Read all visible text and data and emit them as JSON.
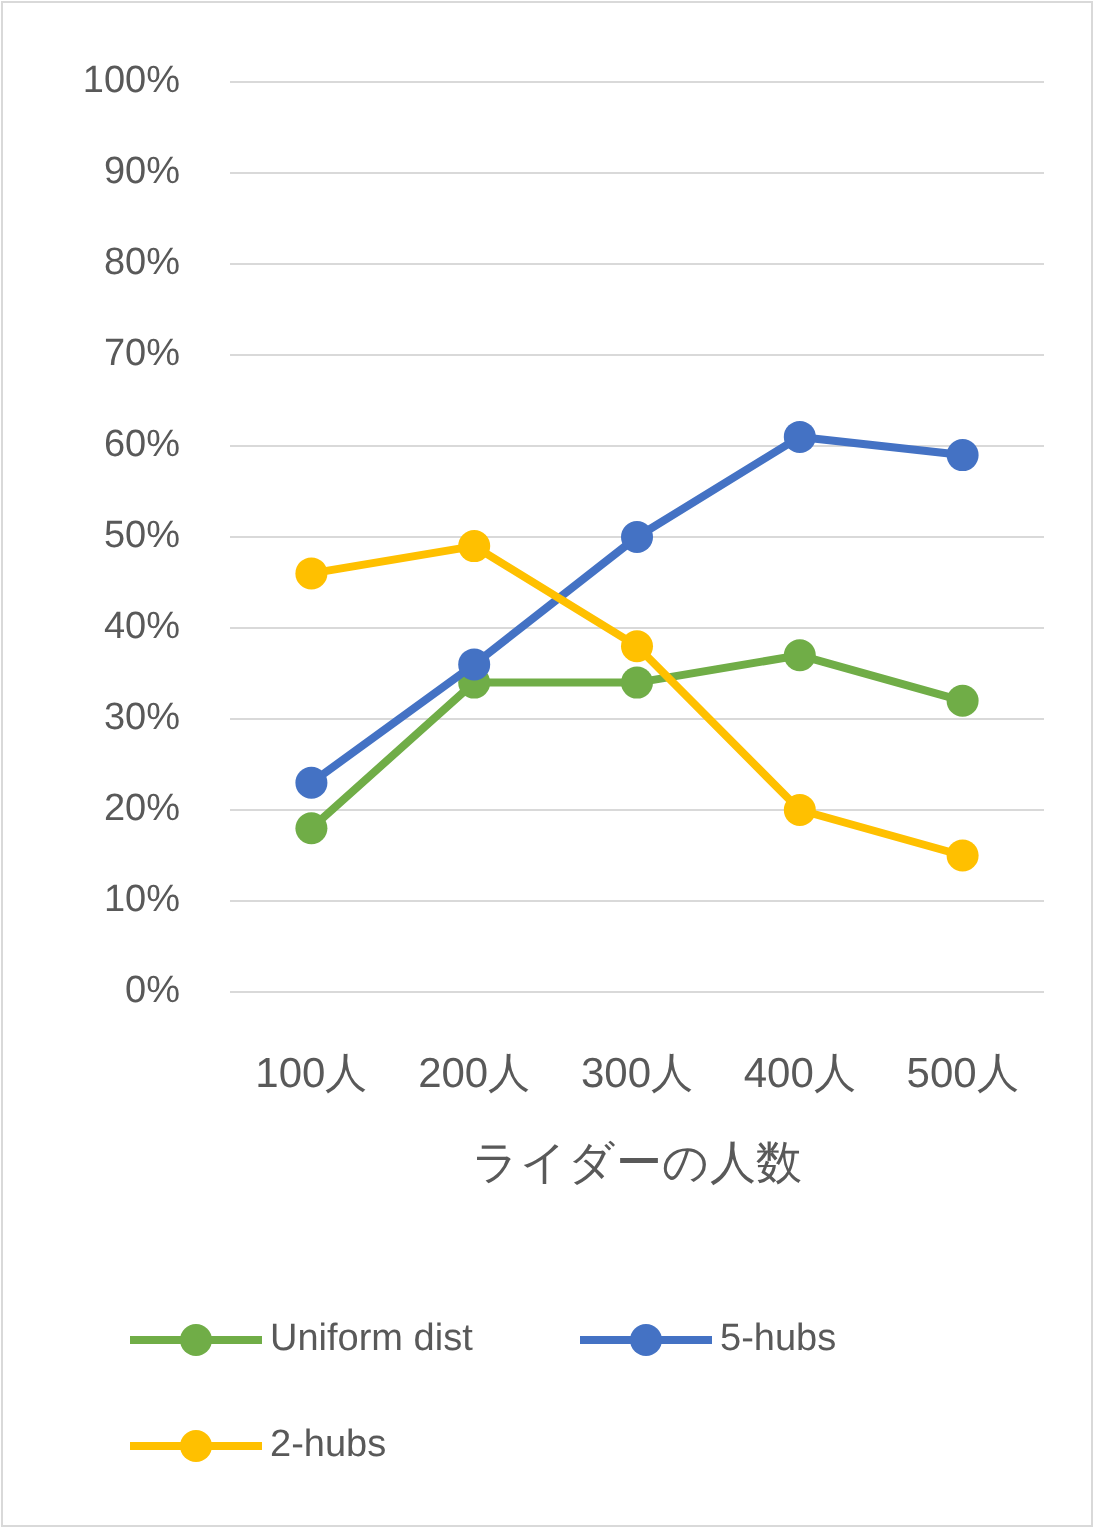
{
  "chart_data": {
    "type": "line",
    "xlabel": "ライダーの人数",
    "categories": [
      "100人",
      "200人",
      "300人",
      "400人",
      "500人"
    ],
    "series": [
      {
        "name": "Uniform dist",
        "color": "#70ad47",
        "values": [
          18,
          34,
          34,
          37,
          32
        ]
      },
      {
        "name": "5-hubs",
        "color": "#4472c4",
        "values": [
          23,
          36,
          50,
          61,
          59
        ]
      },
      {
        "name": "2-hubs",
        "color": "#ffc000",
        "values": [
          46,
          49,
          38,
          20,
          15
        ]
      }
    ],
    "ylim": [
      0,
      100
    ],
    "yticks": [
      {
        "value": 0,
        "label": "0%"
      },
      {
        "value": 10,
        "label": "10%"
      },
      {
        "value": 20,
        "label": "20%"
      },
      {
        "value": 30,
        "label": "30%"
      },
      {
        "value": 40,
        "label": "40%"
      },
      {
        "value": 50,
        "label": "50%"
      },
      {
        "value": 60,
        "label": "60%"
      },
      {
        "value": 70,
        "label": "70%"
      },
      {
        "value": 80,
        "label": "80%"
      },
      {
        "value": 90,
        "label": "90%"
      },
      {
        "value": 100,
        "label": "100%"
      }
    ],
    "grid": "y",
    "legend": "bottom",
    "marker": "circle"
  }
}
